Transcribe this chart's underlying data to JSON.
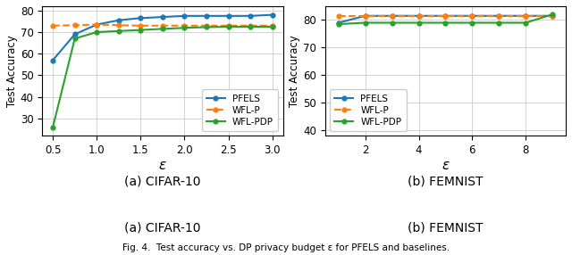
{
  "cifar10": {
    "epsilon": [
      0.5,
      0.75,
      1.0,
      1.25,
      1.5,
      1.75,
      2.0,
      2.25,
      2.5,
      2.75,
      3.0
    ],
    "PFELS": [
      57.0,
      69.0,
      73.5,
      75.5,
      76.5,
      77.0,
      77.5,
      77.5,
      77.5,
      77.5,
      78.0
    ],
    "WFL_P": [
      73.0,
      73.2,
      73.5,
      73.2,
      73.0,
      73.0,
      73.0,
      73.0,
      73.0,
      73.0,
      73.0
    ],
    "WFL_PDP": [
      26.0,
      67.0,
      70.0,
      70.5,
      71.0,
      71.5,
      72.0,
      72.3,
      72.5,
      72.5,
      72.5
    ],
    "xlabel": "ε",
    "ylabel": "Test Accuracy",
    "subtitle": "(a) CIFAR-10",
    "xlim": [
      0.38,
      3.12
    ],
    "ylim": [
      22,
      82
    ],
    "xticks": [
      0.5,
      1.0,
      1.5,
      2.0,
      2.5,
      3.0
    ],
    "yticks": [
      30,
      40,
      50,
      60,
      70,
      80
    ]
  },
  "femnist": {
    "epsilon": [
      1.0,
      2.0,
      3.0,
      4.0,
      5.0,
      6.0,
      7.0,
      8.0,
      9.0
    ],
    "PFELS": [
      79.0,
      81.5,
      81.5,
      81.5,
      81.5,
      81.5,
      81.5,
      81.5,
      81.5
    ],
    "WFL_P": [
      81.5,
      81.5,
      81.5,
      81.5,
      81.5,
      81.5,
      81.5,
      81.5,
      81.5
    ],
    "WFL_PDP": [
      78.5,
      79.0,
      79.0,
      79.0,
      79.0,
      79.0,
      79.0,
      79.0,
      82.0
    ],
    "xlabel": "ε",
    "ylabel": "Test Accuracy",
    "subtitle": "(b) FEMNIST",
    "xlim": [
      0.5,
      9.5
    ],
    "ylim": [
      38,
      85
    ],
    "xticks": [
      2,
      4,
      6,
      8
    ],
    "yticks": [
      40,
      50,
      60,
      70,
      80
    ]
  },
  "color_PFELS": "#1f77b4",
  "color_WFL_P": "#ff7f0e",
  "color_WFL_PDP": "#2ca02c",
  "fig_caption": "Fig. 4.  Test accuracy vs. DP privacy budget ε for PFELS and baselines.",
  "legend_labels": [
    "PFELS",
    "WFL-P",
    "WFL-PDP"
  ]
}
